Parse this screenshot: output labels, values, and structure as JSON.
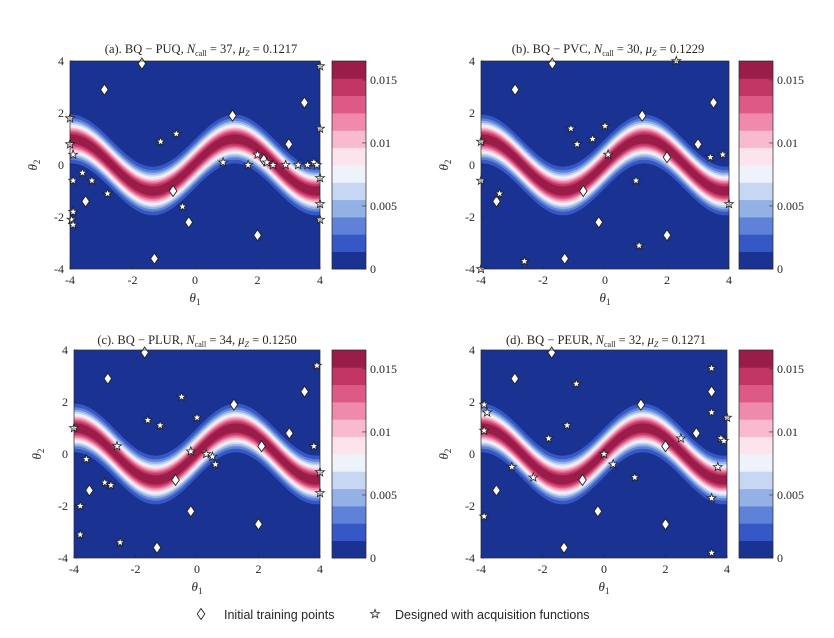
{
  "legend": {
    "initial_label": "Initial training points",
    "designed_label": "Designed with acquisition functions"
  },
  "colorbar": {
    "ticks": [
      "0",
      "0.005",
      "0.01",
      "0.015"
    ],
    "levels": [
      "#1a3392",
      "#3558c6",
      "#5f82d8",
      "#94b1e6",
      "#c7d6f2",
      "#eef2fb",
      "#fde3eb",
      "#f9b9ce",
      "#f08aac",
      "#de5a86",
      "#c23666",
      "#9a1c48"
    ]
  },
  "chart_data": [
    {
      "type": "heatmap",
      "title_prefix": "(a). BQ − PUQ,",
      "ncall": "37",
      "muz": "0.1217",
      "xlabel": "θ1",
      "ylabel": "θ2",
      "xlim": [
        -4,
        4
      ],
      "ylim": [
        -4,
        4
      ],
      "xticks": [
        "-4",
        "-2",
        "0",
        "2",
        "4"
      ],
      "yticks": [
        "-4",
        "-2",
        "0",
        "2",
        "4"
      ],
      "zlim": [
        0,
        0.0165
      ],
      "initial_points": [
        [
          -1.7,
          3.9
        ],
        [
          -2.9,
          2.9
        ],
        [
          -0.7,
          -1.0
        ],
        [
          -0.2,
          -2.2
        ],
        [
          1.2,
          1.9
        ],
        [
          2.0,
          -2.7
        ],
        [
          -1.3,
          -3.6
        ],
        [
          -3.5,
          -1.4
        ],
        [
          3.0,
          0.8
        ],
        [
          3.5,
          2.4
        ],
        [
          2.2,
          0.2
        ]
      ],
      "designed_points": [
        [
          -4.0,
          0.8
        ],
        [
          -3.9,
          0.4
        ],
        [
          -3.9,
          -0.6
        ],
        [
          -3.9,
          -1.8
        ],
        [
          -3.95,
          -2.1
        ],
        [
          -3.9,
          -2.3
        ],
        [
          -4.0,
          1.8
        ],
        [
          -3.6,
          -0.3
        ],
        [
          -3.3,
          -0.6
        ],
        [
          -2.8,
          -1.1
        ],
        [
          -1.1,
          0.9
        ],
        [
          -0.6,
          1.2
        ],
        [
          -0.4,
          -1.6
        ],
        [
          0.9,
          0.1
        ],
        [
          1.7,
          0.0
        ],
        [
          2.0,
          0.4
        ],
        [
          2.3,
          0.1
        ],
        [
          2.5,
          0.0
        ],
        [
          2.9,
          0.0
        ],
        [
          3.3,
          0.0
        ],
        [
          3.6,
          0.0
        ],
        [
          3.8,
          0.1
        ],
        [
          3.9,
          0.0
        ],
        [
          4.0,
          -0.5
        ],
        [
          4.0,
          -1.5
        ],
        [
          4.0,
          -2.1
        ],
        [
          4.0,
          1.4
        ],
        [
          4.0,
          3.8
        ]
      ]
    },
    {
      "type": "heatmap",
      "title_prefix": "(b). BQ − PVC,",
      "ncall": "30",
      "muz": "0.1229",
      "xlabel": "θ1",
      "ylabel": "θ2",
      "xlim": [
        -4,
        4
      ],
      "ylim": [
        -4,
        4
      ],
      "xticks": [
        "-4",
        "-2",
        "0",
        "2",
        "4"
      ],
      "yticks": [
        "-4",
        "-2",
        "0",
        "2",
        "4"
      ],
      "zlim": [
        0,
        0.0165
      ],
      "initial_points": [
        [
          -1.7,
          3.9
        ],
        [
          -2.9,
          2.9
        ],
        [
          -0.7,
          -1.0
        ],
        [
          -0.2,
          -2.2
        ],
        [
          1.2,
          1.9
        ],
        [
          2.0,
          -2.7
        ],
        [
          -1.3,
          -3.6
        ],
        [
          -3.5,
          -1.4
        ],
        [
          3.0,
          0.8
        ],
        [
          3.5,
          2.4
        ],
        [
          2.0,
          0.3
        ]
      ],
      "designed_points": [
        [
          -4.0,
          0.9
        ],
        [
          -4.0,
          -0.6
        ],
        [
          -4.0,
          -4.0
        ],
        [
          -3.4,
          -1.1
        ],
        [
          -2.6,
          -3.7
        ],
        [
          -1.1,
          1.4
        ],
        [
          -0.9,
          0.8
        ],
        [
          -0.4,
          1.0
        ],
        [
          0.0,
          1.5
        ],
        [
          0.1,
          0.4
        ],
        [
          1.0,
          -0.6
        ],
        [
          1.1,
          -3.1
        ],
        [
          2.3,
          4.0
        ],
        [
          3.4,
          0.3
        ],
        [
          3.8,
          0.4
        ],
        [
          4.0,
          -1.5
        ]
      ]
    },
    {
      "type": "heatmap",
      "title_prefix": "(c). BQ − PLUR,",
      "ncall": "34",
      "muz": "0.1250",
      "xlabel": "θ1",
      "ylabel": "θ2",
      "xlim": [
        -4,
        4
      ],
      "ylim": [
        -4,
        4
      ],
      "xticks": [
        "-4",
        "-2",
        "0",
        "2",
        "4"
      ],
      "yticks": [
        "-4",
        "-2",
        "0",
        "2",
        "4"
      ],
      "zlim": [
        0,
        0.0165
      ],
      "initial_points": [
        [
          -1.7,
          3.9
        ],
        [
          -2.9,
          2.9
        ],
        [
          -0.7,
          -1.0
        ],
        [
          -0.2,
          -2.2
        ],
        [
          1.2,
          1.9
        ],
        [
          2.0,
          -2.7
        ],
        [
          -1.3,
          -3.6
        ],
        [
          -3.5,
          -1.4
        ],
        [
          3.0,
          0.8
        ],
        [
          3.5,
          2.4
        ],
        [
          2.1,
          0.3
        ]
      ],
      "designed_points": [
        [
          -4.0,
          1.0
        ],
        [
          -3.8,
          -2.0
        ],
        [
          -3.8,
          -3.1
        ],
        [
          -3.6,
          -0.2
        ],
        [
          -2.6,
          0.3
        ],
        [
          -3.0,
          -1.1
        ],
        [
          -2.8,
          -1.2
        ],
        [
          -1.6,
          1.3
        ],
        [
          -1.2,
          1.1
        ],
        [
          -0.5,
          2.2
        ],
        [
          -0.2,
          0.1
        ],
        [
          0.0,
          1.4
        ],
        [
          0.3,
          0.0
        ],
        [
          0.5,
          -0.1
        ],
        [
          0.6,
          -0.4
        ],
        [
          -2.5,
          -3.4
        ],
        [
          3.9,
          3.4
        ],
        [
          4.0,
          -0.7
        ],
        [
          4.0,
          -1.5
        ],
        [
          3.8,
          0.3
        ]
      ]
    },
    {
      "type": "heatmap",
      "title_prefix": "(d). BQ − PEUR,",
      "ncall": "32",
      "muz": "0.1271",
      "xlabel": "θ1",
      "ylabel": "θ2",
      "xlim": [
        -4,
        4
      ],
      "ylim": [
        -4,
        4
      ],
      "xticks": [
        "-4",
        "-2",
        "0",
        "2",
        "4"
      ],
      "yticks": [
        "-4",
        "-2",
        "0",
        "2",
        "4"
      ],
      "zlim": [
        0,
        0.0165
      ],
      "initial_points": [
        [
          -1.7,
          3.9
        ],
        [
          -2.9,
          2.9
        ],
        [
          -0.7,
          -1.0
        ],
        [
          -0.2,
          -2.2
        ],
        [
          1.2,
          1.9
        ],
        [
          2.0,
          -2.7
        ],
        [
          -1.3,
          -3.6
        ],
        [
          -3.5,
          -1.4
        ],
        [
          3.0,
          0.8
        ],
        [
          3.5,
          2.4
        ],
        [
          2.0,
          0.3
        ]
      ],
      "designed_points": [
        [
          -3.9,
          1.9
        ],
        [
          -3.8,
          1.6
        ],
        [
          -3.9,
          0.9
        ],
        [
          -3.9,
          -2.4
        ],
        [
          -3.0,
          -0.5
        ],
        [
          -2.3,
          -0.9
        ],
        [
          -1.8,
          0.6
        ],
        [
          -1.2,
          1.1
        ],
        [
          -0.9,
          2.7
        ],
        [
          0.0,
          0.0
        ],
        [
          0.3,
          -0.4
        ],
        [
          1.0,
          -0.9
        ],
        [
          2.5,
          0.6
        ],
        [
          3.5,
          3.3
        ],
        [
          3.5,
          1.6
        ],
        [
          3.5,
          -1.7
        ],
        [
          3.5,
          -3.8
        ],
        [
          3.7,
          -0.5
        ],
        [
          3.8,
          0.6
        ],
        [
          3.9,
          0.5
        ],
        [
          4.0,
          1.4
        ]
      ]
    }
  ]
}
